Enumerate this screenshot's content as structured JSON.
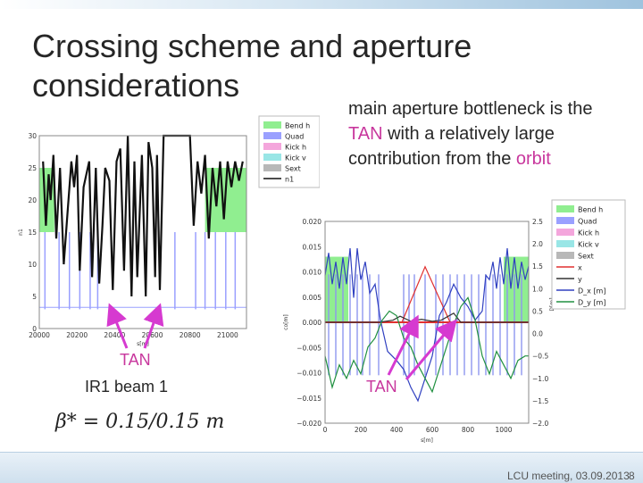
{
  "slide": {
    "title": "Crossing scheme and aperture considerations",
    "bullet_pre": "main aperture bottleneck is the ",
    "bullet_hl1": "TAN",
    "bullet_mid": " with a relatively large contribution from the ",
    "bullet_hl2": "orbit",
    "left_tan_label": "TAN",
    "left_caption": "IR1 beam 1",
    "right_tan_label": "TAN",
    "formula": "β* = 0.15/0.15 m",
    "footer": "LCU meeting, 03.09.2013",
    "page_number": "8"
  },
  "colors": {
    "accent": "#c8379d",
    "bend": "#90ee90",
    "quad": "#9aa0ff",
    "kick_h": "#f4a6dc",
    "kick_v": "#99e6e6",
    "sext": "#b8b8b8"
  },
  "chart_data": [
    {
      "type": "line",
      "xlabel": "s[m]",
      "ylabel": "n1",
      "xlim": [
        20000,
        21100
      ],
      "ylim": [
        0,
        30
      ],
      "x_ticks": [
        "20000",
        "20200",
        "20400",
        "20600",
        "20800",
        "21000"
      ],
      "y_ticks": [
        "0",
        "5",
        "10",
        "15",
        "20",
        "25",
        "30"
      ],
      "legend": [
        "Bend h",
        "Quad",
        "Kick h",
        "Kick v",
        "Sext",
        "n1"
      ],
      "legend_position": "right",
      "bend_regions": [
        [
          20000,
          20080
        ],
        [
          20880,
          21100
        ]
      ],
      "quads": [
        20030,
        20105,
        20160,
        20215,
        20270,
        20310,
        20720,
        20830,
        20880,
        20935,
        20990,
        21040
      ],
      "n1_series": {
        "x": [
          20020,
          20035,
          20050,
          20060,
          20075,
          20090,
          20110,
          20130,
          20150,
          20170,
          20185,
          20200,
          20215,
          20235,
          20250,
          20265,
          20280,
          20300,
          20318,
          20335,
          20350,
          20372,
          20390,
          20410,
          20430,
          20450,
          20470,
          20490,
          20505,
          20520,
          20545,
          20565,
          20580,
          20600,
          20615,
          20625,
          20640,
          20660,
          20680,
          20700,
          20720,
          20740,
          20780,
          20800,
          20820,
          20840,
          20860,
          20880,
          20900,
          20920,
          20940,
          20960,
          20980,
          21000,
          21020,
          21040,
          21060,
          21080
        ],
        "y": [
          26,
          16,
          24,
          20,
          27,
          14,
          25,
          10,
          18,
          26,
          22,
          27,
          9,
          22,
          24,
          26,
          8,
          25,
          7,
          16,
          25,
          23,
          6,
          26,
          28,
          9,
          30,
          5,
          26,
          8,
          27,
          5,
          29,
          25,
          8,
          27,
          6,
          30,
          30,
          30,
          30,
          30,
          30,
          30,
          16,
          26,
          21,
          27,
          14,
          25,
          19,
          26,
          17,
          26,
          22,
          26,
          23,
          26
        ]
      }
    },
    {
      "type": "line",
      "xlabel": "s[m]",
      "ylabel": "co[m]",
      "y2label": "D[m]",
      "xlim": [
        0,
        1140
      ],
      "ylim": [
        -0.02,
        0.02
      ],
      "y2lim": [
        -2.0,
        2.5
      ],
      "x_ticks": [
        "0",
        "200",
        "400",
        "600",
        "800",
        "1000"
      ],
      "y_ticks": [
        "−0.020",
        "−0.015",
        "−0.010",
        "−0.005",
        "0.000",
        "0.005",
        "0.010",
        "0.015",
        "0.020"
      ],
      "y2_ticks": [
        "−2.0",
        "−1.5",
        "−1.0",
        "−0.5",
        "0.0",
        "0.5",
        "1.0",
        "1.5",
        "2.0",
        "2.5"
      ],
      "legend": [
        "Bend h",
        "Quad",
        "Kick h",
        "Kick v",
        "Sext",
        "x",
        "y",
        "D_x [m]",
        "D_y [m]"
      ],
      "legend_position": "top-right",
      "bend_regions": [
        [
          0,
          130
        ],
        [
          1000,
          1140
        ]
      ],
      "quads": [
        20,
        60,
        100,
        140,
        180,
        210,
        250,
        300,
        440,
        470,
        500,
        560,
        620,
        660,
        700,
        740,
        780,
        820,
        860,
        900,
        940,
        980,
        1020,
        1060,
        1100
      ],
      "series": [
        {
          "name": "x",
          "color": "#e03030",
          "x": [
            0,
            430,
            560,
            700,
            1140
          ],
          "y": [
            0.0,
            0.0,
            0.011,
            0.0,
            0.0
          ]
        },
        {
          "name": "y",
          "color": "#333333",
          "x": [
            0,
            300,
            380,
            420,
            480,
            540,
            600,
            650,
            720,
            760,
            840,
            1140
          ],
          "y": [
            0.0,
            0.0,
            0.0004,
            0.0012,
            0.0002,
            0.0006,
            0.0002,
            0.0004,
            0.0018,
            0.0,
            0.0,
            0.0
          ]
        },
        {
          "name": "D_x [m]",
          "color": "#3040c0",
          "x": [
            0,
            20,
            40,
            60,
            80,
            100,
            120,
            140,
            160,
            180,
            200,
            225,
            250,
            280,
            310,
            350,
            400,
            440,
            480,
            520,
            560,
            600,
            640,
            680,
            720,
            760,
            800,
            840,
            880,
            900,
            920,
            940,
            960,
            980,
            1000,
            1020,
            1040,
            1060,
            1080,
            1100,
            1120,
            1140
          ],
          "y": [
            1.3,
            1.8,
            1.1,
            1.6,
            1.0,
            1.7,
            1.1,
            1.9,
            0.8,
            1.9,
            1.2,
            1.6,
            0.9,
            1.1,
            0.3,
            -0.4,
            -0.6,
            -0.8,
            -1.2,
            -1.5,
            -1.0,
            -0.5,
            0.4,
            0.7,
            1.1,
            0.8,
            0.6,
            0.3,
            0.5,
            1.3,
            1.2,
            1.6,
            1.0,
            1.7,
            1.1,
            1.9,
            1.0,
            1.7,
            1.0,
            1.6,
            1.2,
            1.5
          ]
        },
        {
          "name": "D_y [m]",
          "color": "#209040",
          "x": [
            0,
            40,
            80,
            120,
            160,
            200,
            240,
            280,
            320,
            360,
            400,
            440,
            480,
            520,
            560,
            600,
            640,
            680,
            720,
            760,
            800,
            840,
            880,
            920,
            960,
            1000,
            1040,
            1080,
            1120,
            1140
          ],
          "y": [
            -0.5,
            -1.2,
            -0.7,
            -1.0,
            -0.6,
            -0.9,
            -0.3,
            -0.1,
            0.3,
            0.5,
            0.4,
            -0.1,
            -0.3,
            -0.7,
            -1.0,
            -1.3,
            -0.8,
            -0.3,
            0.2,
            0.6,
            0.8,
            0.3,
            -0.5,
            -0.9,
            -0.4,
            -0.7,
            -1.0,
            -0.6,
            -0.5,
            -0.5
          ]
        }
      ]
    }
  ]
}
